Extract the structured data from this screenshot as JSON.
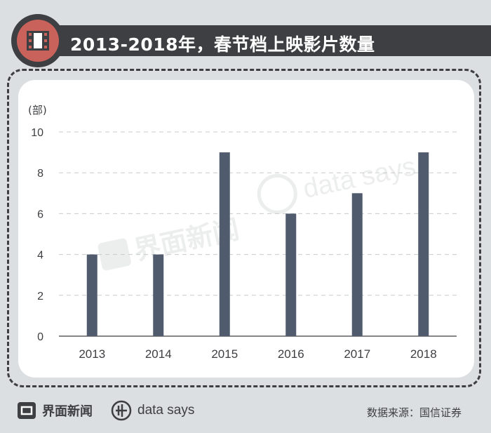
{
  "title": "2013-2018年，春节档上映影片数量",
  "colors": {
    "background": "#dcdfe1",
    "title_bar": "#3d3f42",
    "badge": "#c9625a",
    "bar": "#515b6e",
    "text": "#3d3f42"
  },
  "icons": {
    "title": "film-strip-icon",
    "footer_logo": "jiemian-logo-icon",
    "footer_brand": "data-says-icon"
  },
  "watermarks": {
    "logo": "界面新闻",
    "brand": "data says"
  },
  "chart_data": {
    "type": "bar",
    "categories": [
      "2013",
      "2014",
      "2015",
      "2016",
      "2017",
      "2018"
    ],
    "values": [
      4,
      4,
      9,
      6,
      7,
      9
    ],
    "ylabel": "(部)",
    "ylim": [
      0,
      10
    ],
    "yticks": [
      "0",
      "2",
      "4",
      "6",
      "8",
      "10"
    ],
    "grid": true,
    "grid_style": "dashed",
    "legend": "none"
  },
  "footer": {
    "logo_text": "界面新闻",
    "brand_text": "data says",
    "source": "数据来源：国信证券"
  }
}
